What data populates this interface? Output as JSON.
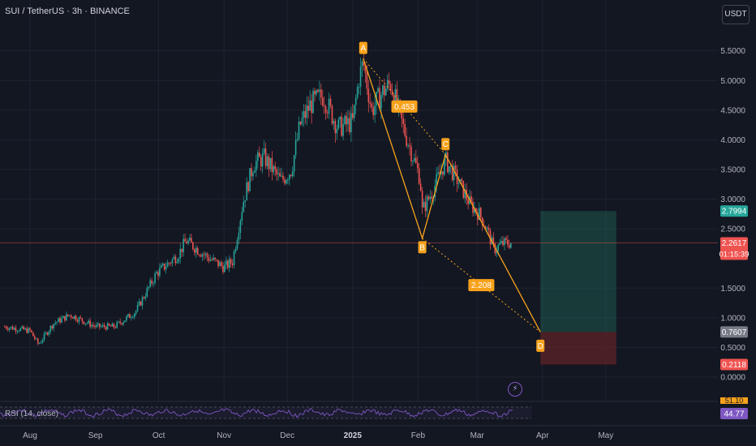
{
  "header": {
    "symbol_title": "SUI / TetherUS · 3h · BINANCE",
    "currency_button": "USDT"
  },
  "indicator": {
    "label": "RSI (14, close)",
    "value": "44.77",
    "upper_value": "51.10"
  },
  "colors": {
    "background": "#131722",
    "up": "#26a69a",
    "down": "#ef5350",
    "pattern": "#f7a21b",
    "target": "#1e5a4f",
    "stop": "#5a2228",
    "price_line": "#ef5350",
    "rsi": "#7e57c2"
  },
  "chart_data": {
    "type": "candlestick",
    "title": "SUI / TetherUS · 3h · BINANCE",
    "x_ticks": [
      "Aug",
      "Sep",
      "Oct",
      "Nov",
      "Dec",
      "2025",
      "Feb",
      "Mar",
      "Apr",
      "May"
    ],
    "y_ticks": [
      "5.5000",
      "5.0000",
      "4.5000",
      "4.0000",
      "3.5000",
      "3.0000",
      "2.5000",
      "1.5000",
      "1.0000",
      "0.5000",
      "0.0000"
    ],
    "ylim": [
      0,
      5.6
    ],
    "grid": true,
    "price_path": [
      [
        "2024-07-20",
        0.85
      ],
      [
        "2024-08-01",
        0.78
      ],
      [
        "2024-08-05",
        0.55
      ],
      [
        "2024-08-12",
        0.9
      ],
      [
        "2024-08-20",
        1.05
      ],
      [
        "2024-09-01",
        0.85
      ],
      [
        "2024-09-10",
        0.85
      ],
      [
        "2024-09-20",
        1.1
      ],
      [
        "2024-09-30",
        1.75
      ],
      [
        "2024-10-10",
        2.05
      ],
      [
        "2024-10-14",
        2.3
      ],
      [
        "2024-10-25",
        2.0
      ],
      [
        "2024-11-01",
        1.85
      ],
      [
        "2024-11-05",
        1.95
      ],
      [
        "2024-11-10",
        2.95
      ],
      [
        "2024-11-15",
        3.6
      ],
      [
        "2024-11-20",
        3.7
      ],
      [
        "2024-11-28",
        3.3
      ],
      [
        "2024-12-03",
        3.5
      ],
      [
        "2024-12-07",
        4.25
      ],
      [
        "2024-12-12",
        4.6
      ],
      [
        "2024-12-18",
        4.75
      ],
      [
        "2024-12-25",
        4.2
      ],
      [
        "2025-01-01",
        4.3
      ],
      [
        "2025-01-04",
        5.05
      ],
      [
        "2025-01-06",
        5.3
      ],
      [
        "2025-01-10",
        4.5
      ],
      [
        "2025-01-15",
        4.8
      ],
      [
        "2025-01-19",
        4.95
      ],
      [
        "2025-01-25",
        4.2
      ],
      [
        "2025-02-02",
        3.35
      ],
      [
        "2025-02-03",
        2.8
      ],
      [
        "2025-02-08",
        3.15
      ],
      [
        "2025-02-14",
        3.65
      ],
      [
        "2025-02-20",
        3.3
      ],
      [
        "2025-02-26",
        2.9
      ],
      [
        "2025-03-02",
        2.75
      ],
      [
        "2025-03-05",
        2.55
      ],
      [
        "2025-03-09",
        2.15
      ],
      [
        "2025-03-13",
        2.25
      ],
      [
        "2025-03-17",
        2.2617
      ]
    ],
    "pattern_points": [
      {
        "label": "A",
        "date": "2025-01-06",
        "value": 5.37
      },
      {
        "label": "B",
        "date": "2025-02-03",
        "value": 2.34
      },
      {
        "label": "C",
        "date": "2025-02-14",
        "value": 3.75
      },
      {
        "label": "D",
        "date": "2025-03-31",
        "value": 0.76
      }
    ],
    "pattern_ratios": [
      "0.453",
      "2.208"
    ],
    "target_zone": {
      "from_date": "2025-03-31",
      "to_date": "2025-05-06",
      "top": 2.7994,
      "bottom": 0.7607
    },
    "stop_zone": {
      "from_date": "2025-03-31",
      "to_date": "2025-05-06",
      "top": 0.7607,
      "bottom": 0.2118
    },
    "price_labels": [
      {
        "value": 2.7994,
        "text": "2.7994",
        "color": "#26a69a"
      },
      {
        "value": 2.2617,
        "text": "2.2617",
        "sub": "01:15:39",
        "color": "#ef5350"
      },
      {
        "value": 0.7607,
        "text": "0.7607",
        "color": "#787b86"
      },
      {
        "value": 0.2118,
        "text": "0.2118",
        "color": "#ef5350"
      }
    ],
    "current_price": 2.2617
  }
}
